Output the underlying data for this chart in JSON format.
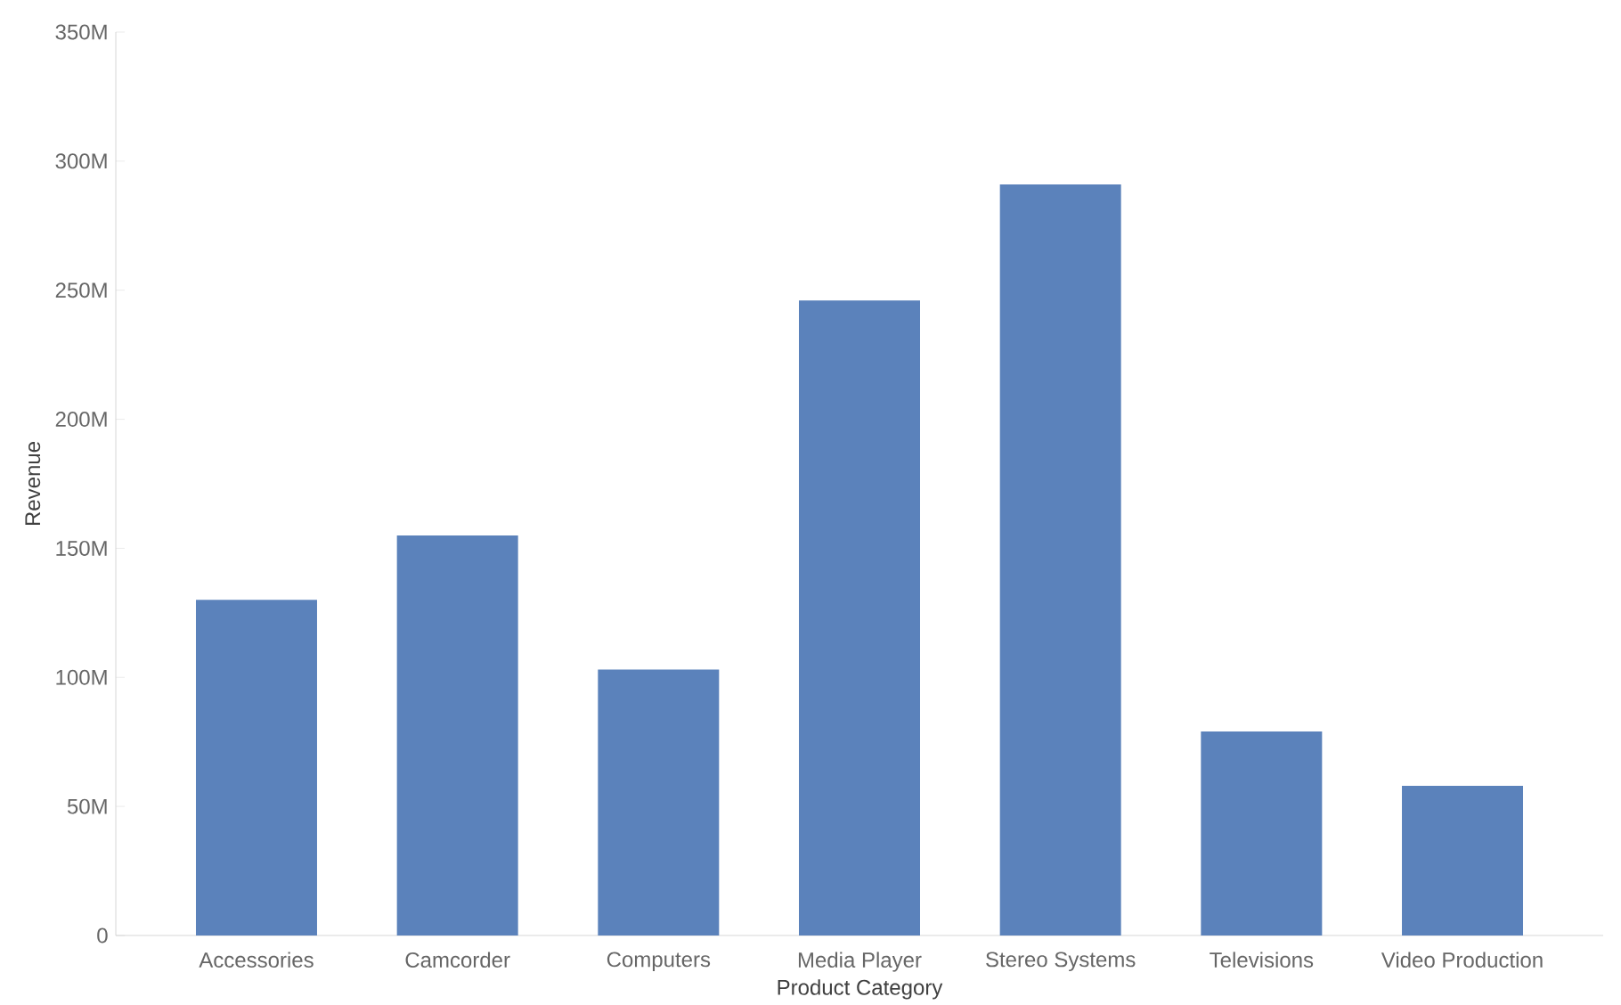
{
  "chart_data": {
    "type": "bar",
    "xlabel": "Product Category",
    "ylabel": "Revenue",
    "categories": [
      "Accessories",
      "Camcorder",
      "Computers",
      "Media Player",
      "Stereo Systems",
      "Televisions",
      "Video Production"
    ],
    "values": [
      130,
      155,
      103,
      246,
      291,
      79,
      58
    ],
    "color": "#5b82bb",
    "ylim": [
      0,
      350
    ],
    "yticks": [
      0,
      {
        "value": 50,
        "label": "50M"
      },
      {
        "value": 100,
        "label": "100M"
      },
      {
        "value": 150,
        "label": "150M"
      },
      {
        "value": 200,
        "label": "200M"
      },
      {
        "value": 250,
        "label": "250M"
      },
      {
        "value": 300,
        "label": "300M"
      },
      {
        "value": 350,
        "label": "350M"
      }
    ],
    "grid": false
  }
}
